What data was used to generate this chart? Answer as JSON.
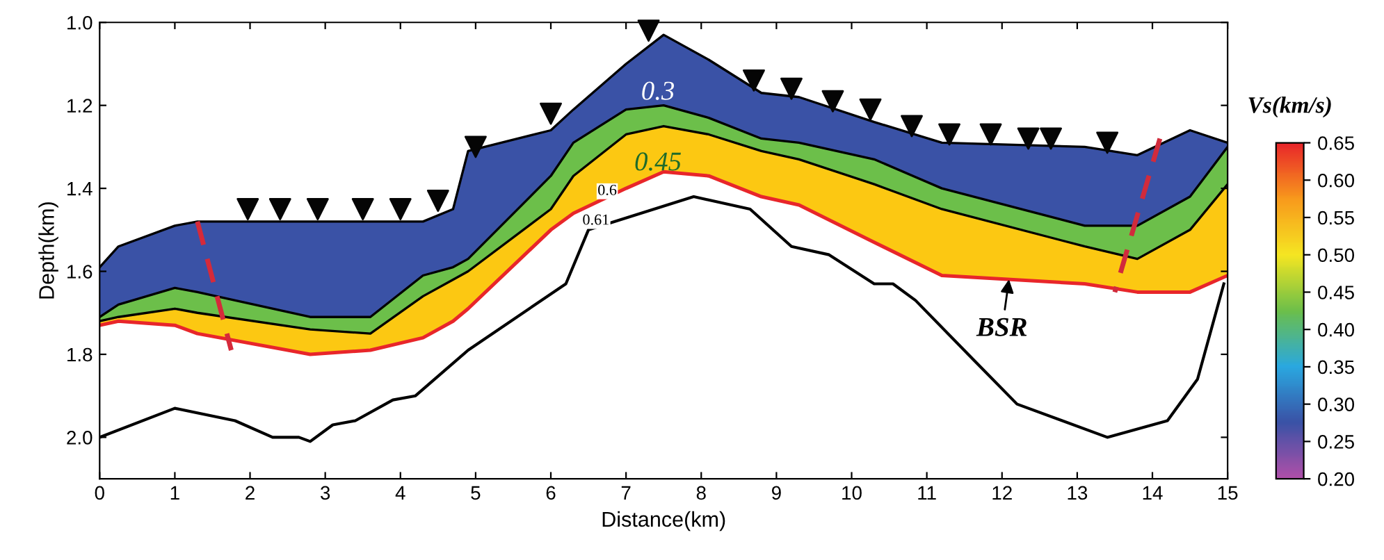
{
  "chart_data": {
    "type": "area",
    "xlabel": "Distance(km)",
    "ylabel": "Depth(km)",
    "clabel": "Vs(km/s)",
    "xlim": [
      0,
      15
    ],
    "xticks": [
      0,
      1,
      2,
      3,
      4,
      5,
      6,
      7,
      8,
      9,
      10,
      11,
      12,
      13,
      14,
      15
    ],
    "ylim": [
      2.1,
      1.0
    ],
    "yticks": [
      {
        "value": 1.0,
        "label": "1.0"
      },
      1.2,
      1.4,
      1.6,
      1.8,
      {
        "value": 2.0,
        "label": "2.0"
      }
    ],
    "clim": [
      0.2,
      0.65
    ],
    "cticks": [
      {
        "value": 0.2,
        "label": "0.20"
      },
      {
        "value": 0.25,
        "label": "0.25"
      },
      {
        "value": 0.3,
        "label": "0.30"
      },
      {
        "value": 0.35,
        "label": "0.35"
      },
      {
        "value": 0.4,
        "label": "0.40"
      },
      {
        "value": 0.45,
        "label": "0.45"
      },
      {
        "value": 0.5,
        "label": "0.50"
      },
      {
        "value": 0.55,
        "label": "0.55"
      },
      {
        "value": 0.6,
        "label": "0.60"
      },
      {
        "value": 0.65,
        "label": "0.65"
      }
    ],
    "grid": false,
    "x": [
      0,
      0.25,
      1.0,
      1.3,
      2.8,
      3.6,
      4.3,
      4.7,
      4.9,
      6.0,
      6.3,
      7.0,
      7.5,
      8.1,
      8.8,
      9.3,
      10.3,
      11.2,
      13.1,
      13.8,
      14.5,
      15
    ],
    "series": [
      {
        "color": "#fcc812",
        "values": [
          1.73,
          1.72,
          1.73,
          1.75,
          1.8,
          1.79,
          1.76,
          1.72,
          1.69,
          1.5,
          1.46,
          1.4,
          1.36,
          1.37,
          1.42,
          1.44,
          1.53,
          1.61,
          1.63,
          1.65,
          1.65,
          1.61
        ]
      },
      {
        "color": "#6cbf4a",
        "values": [
          1.72,
          1.71,
          1.69,
          1.7,
          1.74,
          1.75,
          1.66,
          1.62,
          1.6,
          1.45,
          1.37,
          1.27,
          1.25,
          1.27,
          1.31,
          1.33,
          1.39,
          1.45,
          1.54,
          1.57,
          1.5,
          1.39
        ]
      },
      {
        "color": "#3a52a6",
        "values": [
          1.71,
          1.68,
          1.64,
          1.65,
          1.71,
          1.71,
          1.61,
          1.59,
          1.57,
          1.37,
          1.29,
          1.21,
          1.2,
          1.23,
          1.28,
          1.29,
          1.33,
          1.4,
          1.49,
          1.49,
          1.42,
          1.3
        ]
      },
      {
        "color": "#ffffff",
        "values": [
          1.59,
          1.54,
          1.49,
          1.48,
          1.48,
          1.48,
          1.48,
          1.45,
          1.31,
          1.26,
          1.21,
          1.1,
          1.03,
          1.09,
          1.17,
          1.18,
          1.24,
          1.29,
          1.3,
          1.32,
          1.26,
          1.29
        ]
      },
      {
        "type": "line",
        "color": "#000000",
        "x": [
          0,
          1.0,
          1.8,
          2.3,
          2.65,
          2.8,
          3.1,
          3.4,
          3.9,
          4.2,
          4.9,
          6.2,
          6.5,
          7.9,
          8.65,
          9.2,
          9.7,
          10.3,
          10.55,
          10.85,
          11.55,
          12.2,
          13.4,
          14.2,
          14.6,
          14.95
        ],
        "values": [
          2.0,
          1.93,
          1.96,
          2.0,
          2.0,
          2.01,
          1.97,
          1.96,
          1.91,
          1.9,
          1.79,
          1.63,
          1.5,
          1.42,
          1.45,
          1.54,
          1.56,
          1.63,
          1.63,
          1.67,
          1.8,
          1.92,
          2.0,
          1.96,
          1.86,
          1.63
        ]
      },
      {
        "type": "line",
        "color": "#d62a3a",
        "line_style": "dashed",
        "x": [
          1.3,
          1.75
        ],
        "values": [
          1.48,
          1.79
        ]
      },
      {
        "type": "line",
        "color": "#d12b3c",
        "line_style": "dashed",
        "x": [
          14.1,
          13.5
        ],
        "values": [
          1.28,
          1.65
        ]
      },
      {
        "type": "scatter",
        "color": "#050505",
        "marker": "triangle",
        "x": [
          1.97,
          2.4,
          2.9,
          3.5,
          4.0,
          4.5,
          5.0,
          6.0,
          7.3,
          8.7,
          9.2,
          9.75,
          10.25,
          10.8,
          11.3,
          11.85,
          12.35,
          12.65,
          13.4
        ],
        "values": [
          1.45,
          1.45,
          1.45,
          1.45,
          1.45,
          1.43,
          1.3,
          1.22,
          1.02,
          1.14,
          1.16,
          1.19,
          1.21,
          1.25,
          1.27,
          1.27,
          1.28,
          1.28,
          1.29
        ]
      }
    ],
    "annotations": [
      "0.3",
      "0.45",
      "0.6",
      "0.61",
      {
        "text": "BSR",
        "x": 12.1,
        "y": 1.61
      }
    ]
  }
}
